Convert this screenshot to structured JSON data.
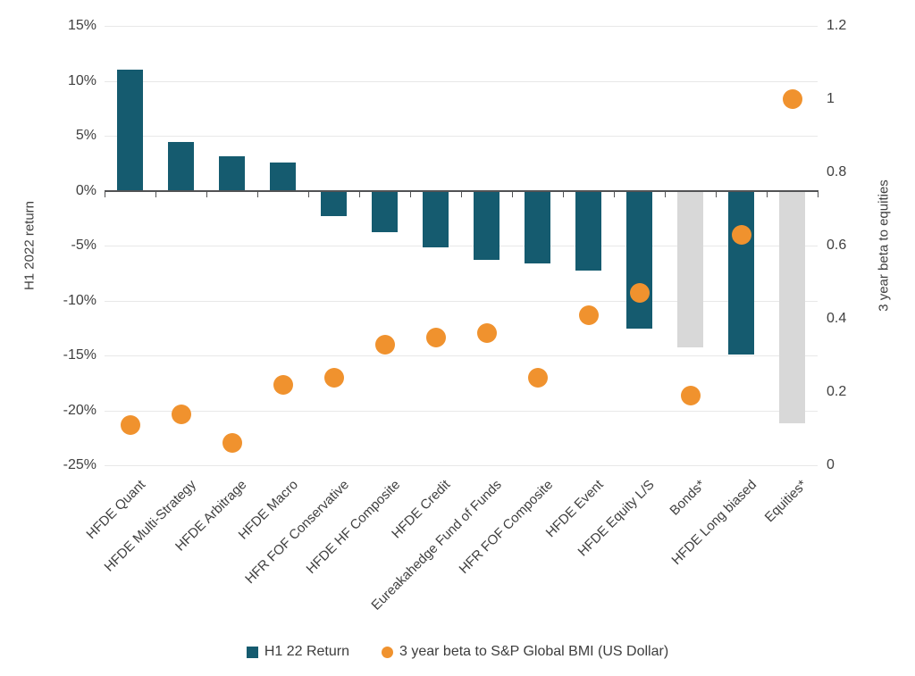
{
  "legend": {
    "bar_label": "H1 22 Return",
    "dot_label": "3 year beta to S&P Global BMI (US Dollar)"
  },
  "colors": {
    "bar": "#155b6f",
    "muted_bar": "#d8d8d8",
    "dot": "#f0922e",
    "grid": "#e8e8e8",
    "axis": "#515254",
    "text": "#404040"
  },
  "chart_data": {
    "type": "bar",
    "subtype": "bar-and-scatter-combo",
    "categories": [
      "HFDE Quant",
      "HFDE Multi-Strategy",
      "HFDE Arbitrage",
      "HFDE Macro",
      "HFR FOF Conservative",
      "HFDE HF Composite",
      "HFDE Credit",
      "Eureakahedge Fund of Funds",
      "HFR FOF Composite",
      "HFDE Event",
      "HFDE Equity L/S",
      "Bonds*",
      "HFDE Long biased",
      "Equities*"
    ],
    "series": [
      {
        "name": "H1 22 Return",
        "type": "bar",
        "axis": "left",
        "unit": "%",
        "values": [
          11.0,
          4.4,
          3.1,
          2.6,
          -2.3,
          -3.8,
          -5.2,
          -6.3,
          -6.6,
          -7.3,
          -12.6,
          -14.3,
          -14.9,
          -21.2
        ]
      },
      {
        "name": "3 year beta to S&P Global BMI (US Dollar)",
        "type": "scatter",
        "axis": "right",
        "values": [
          0.11,
          0.14,
          0.06,
          0.22,
          0.24,
          0.33,
          0.35,
          0.36,
          0.24,
          0.41,
          0.47,
          0.19,
          0.63,
          1.0
        ]
      }
    ],
    "muted_bar_categories": [
      "Bonds*",
      "Equities*"
    ],
    "left_axis": {
      "label": "H1 2022 return",
      "ticks": [
        "15%",
        "10%",
        "5%",
        "0%",
        "-5%",
        "-10%",
        "-15%",
        "-20%",
        "-25%"
      ],
      "tick_values": [
        15,
        10,
        5,
        0,
        -5,
        -10,
        -15,
        -20,
        -25
      ],
      "min": -25,
      "max": 15
    },
    "right_axis": {
      "label": "3 year beta to equities",
      "ticks": [
        "1.2",
        "1",
        "0.8",
        "0.6",
        "0.4",
        "0.2",
        "0"
      ],
      "tick_values": [
        1.2,
        1.0,
        0.8,
        0.6,
        0.4,
        0.2,
        0
      ],
      "min": 0,
      "max": 1.2
    },
    "grid": "horizontal",
    "legend_position": "bottom"
  }
}
